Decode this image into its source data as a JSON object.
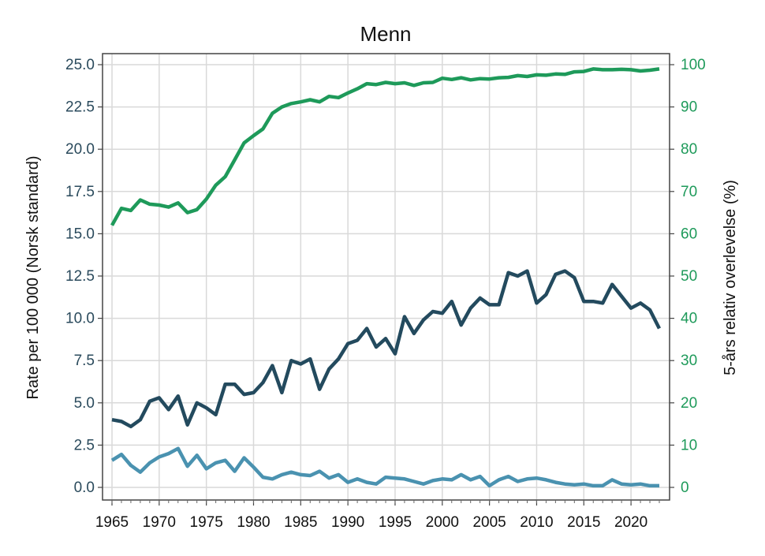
{
  "chart_data": {
    "type": "line",
    "title": "Menn",
    "ylabel": "Rate per 100 000 (Norsk standard)",
    "ylabel_right": "5-års relativ overlevelse (%)",
    "ylim": [
      0,
      25
    ],
    "ylim_right": [
      0,
      100
    ],
    "xlim": [
      1965,
      2023
    ],
    "grid": true,
    "x_ticks": [
      "1965",
      "1970",
      "1975",
      "1980",
      "1985",
      "1990",
      "1995",
      "2000",
      "2005",
      "2010",
      "2015",
      "2020"
    ],
    "y_ticks_left": [
      "0.0",
      "2.5",
      "5.0",
      "7.5",
      "10.0",
      "12.5",
      "15.0",
      "17.5",
      "20.0",
      "22.5",
      "25.0"
    ],
    "y_ticks_right": [
      "0",
      "10",
      "20",
      "30",
      "40",
      "50",
      "60",
      "70",
      "80",
      "90",
      "100"
    ],
    "x": [
      1965,
      1966,
      1967,
      1968,
      1969,
      1970,
      1971,
      1972,
      1973,
      1974,
      1975,
      1976,
      1977,
      1978,
      1979,
      1980,
      1981,
      1982,
      1983,
      1984,
      1985,
      1986,
      1987,
      1988,
      1989,
      1990,
      1991,
      1992,
      1993,
      1994,
      1995,
      1996,
      1997,
      1998,
      1999,
      2000,
      2001,
      2002,
      2003,
      2004,
      2005,
      2006,
      2007,
      2008,
      2009,
      2010,
      2011,
      2012,
      2013,
      2014,
      2015,
      2016,
      2017,
      2018,
      2019,
      2020,
      2021,
      2022,
      2023
    ],
    "series": [
      {
        "axis": "right",
        "color": "#1e9a5a",
        "values": [
          62,
          66,
          65.5,
          68,
          67,
          66.8,
          66.3,
          67.3,
          65,
          65.7,
          68.2,
          71.5,
          73.5,
          77.5,
          81.5,
          83.2,
          84.8,
          88.5,
          90,
          90.8,
          91.2,
          91.7,
          91.2,
          92.5,
          92.2,
          93.3,
          94.3,
          95.5,
          95.3,
          95.8,
          95.5,
          95.7,
          95.1,
          95.7,
          95.8,
          96.8,
          96.5,
          96.9,
          96.4,
          96.7,
          96.6,
          96.9,
          97,
          97.4,
          97.2,
          97.6,
          97.5,
          97.8,
          97.7,
          98.3,
          98.4,
          99,
          98.8,
          98.8,
          98.9,
          98.8,
          98.5,
          98.7,
          99
        ]
      },
      {
        "axis": "left",
        "color": "#234a5e",
        "values": [
          4.0,
          3.9,
          3.6,
          4.0,
          5.1,
          5.3,
          4.6,
          5.4,
          3.7,
          5.0,
          4.7,
          4.3,
          6.1,
          6.1,
          5.5,
          5.6,
          6.2,
          7.2,
          5.6,
          7.5,
          7.3,
          7.6,
          5.8,
          7.0,
          7.6,
          8.5,
          8.7,
          9.4,
          8.3,
          8.8,
          7.9,
          10.1,
          9.1,
          9.9,
          10.4,
          10.3,
          11.0,
          9.6,
          10.6,
          11.2,
          10.8,
          10.8,
          12.7,
          12.5,
          12.8,
          10.9,
          11.4,
          12.6,
          12.8,
          12.4,
          11.0,
          11.0,
          10.9,
          12.0,
          11.3,
          10.6,
          10.9,
          10.5,
          9.4
        ]
      },
      {
        "axis": "left",
        "color": "#4a92b0",
        "values": [
          1.6,
          1.95,
          1.3,
          0.9,
          1.45,
          1.8,
          2.0,
          2.3,
          1.25,
          1.9,
          1.1,
          1.45,
          1.6,
          0.95,
          1.75,
          1.2,
          0.6,
          0.5,
          0.75,
          0.9,
          0.75,
          0.7,
          0.95,
          0.55,
          0.75,
          0.3,
          0.5,
          0.3,
          0.2,
          0.6,
          0.55,
          0.5,
          0.35,
          0.2,
          0.4,
          0.5,
          0.45,
          0.75,
          0.45,
          0.65,
          0.1,
          0.45,
          0.65,
          0.35,
          0.5,
          0.55,
          0.45,
          0.3,
          0.2,
          0.15,
          0.2,
          0.1,
          0.1,
          0.45,
          0.2,
          0.15,
          0.2,
          0.1,
          0.1
        ]
      }
    ]
  }
}
